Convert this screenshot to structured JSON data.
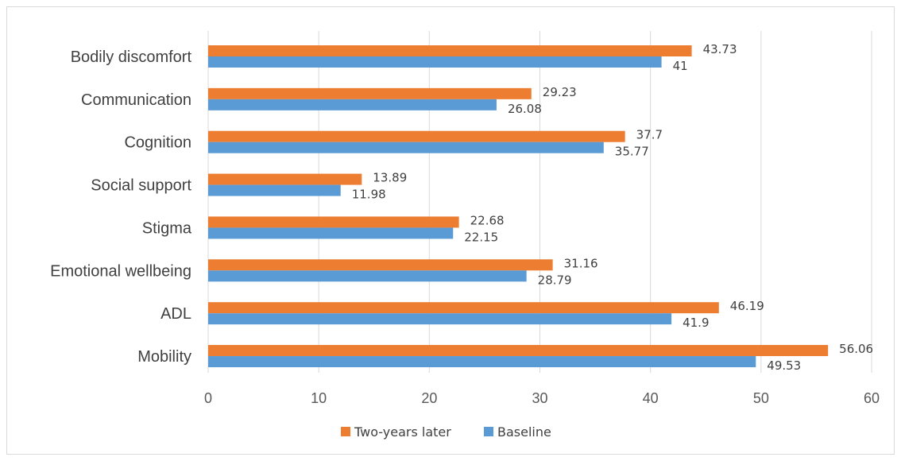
{
  "chart_data": {
    "type": "bar",
    "orientation": "horizontal",
    "categories": [
      "Bodily discomfort",
      "Communication",
      "Cognition",
      "Social support",
      "Stigma",
      "Emotional wellbeing",
      "ADL",
      "Mobility"
    ],
    "series": [
      {
        "name": "Two-years later",
        "color": "#ED7D31",
        "values": [
          43.73,
          29.23,
          37.7,
          13.89,
          22.68,
          31.16,
          46.19,
          56.06
        ]
      },
      {
        "name": "Baseline",
        "color": "#5B9BD5",
        "values": [
          41,
          26.08,
          35.77,
          11.98,
          22.15,
          28.79,
          41.9,
          49.53
        ]
      }
    ],
    "xlim": [
      0,
      60
    ],
    "xticks": [
      0,
      10,
      20,
      30,
      40,
      50,
      60
    ],
    "grid": true,
    "legend_position": "bottom",
    "title": "",
    "xlabel": "",
    "ylabel": ""
  }
}
